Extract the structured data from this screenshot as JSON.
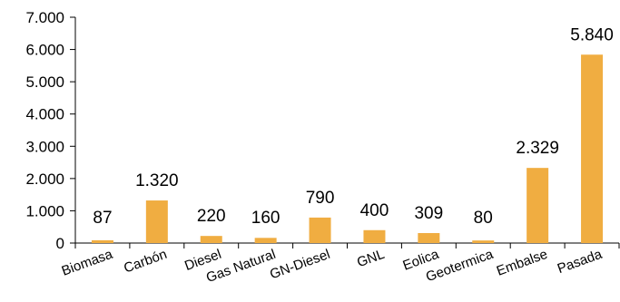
{
  "chart_data": {
    "type": "bar",
    "title": "",
    "xlabel": "",
    "ylabel": "",
    "ylim": [
      0,
      7000
    ],
    "yticks": [
      0,
      1000,
      2000,
      3000,
      4000,
      5000,
      6000,
      7000
    ],
    "ytick_labels": [
      "0",
      "1.000",
      "2.000",
      "3.000",
      "4.000",
      "5.000",
      "6.000",
      "7.000"
    ],
    "grid": false,
    "legend": "none",
    "bar_color": "#F0AD41",
    "categories": [
      "Biomasa",
      "Carbón",
      "Diesel",
      "Gas Natural",
      "GN-Diesel",
      "GNL",
      "Eolica",
      "Geotermica",
      "Embalse",
      "Pasada"
    ],
    "values": [
      87,
      1320,
      220,
      160,
      790,
      400,
      309,
      80,
      2329,
      5840
    ],
    "value_labels": [
      "87",
      "1.320",
      "220",
      "160",
      "790",
      "400",
      "309",
      "80",
      "2.329",
      "5.840"
    ]
  }
}
